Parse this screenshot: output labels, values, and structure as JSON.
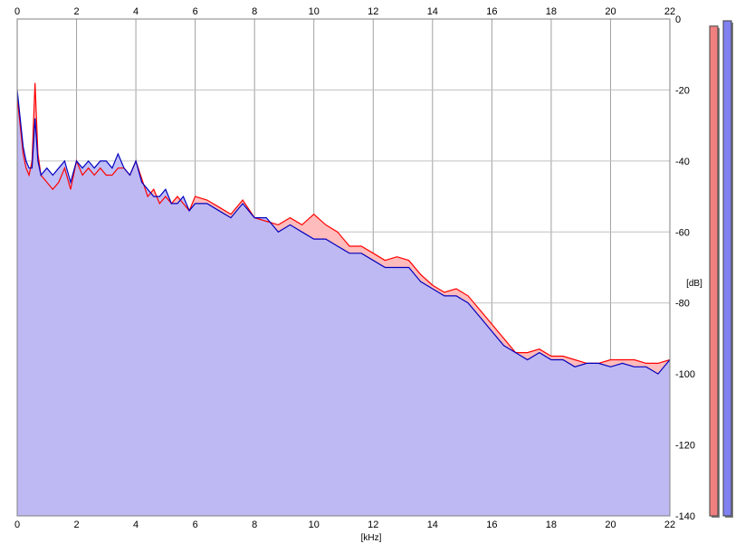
{
  "chart_data": {
    "type": "area",
    "xlabel": "[kHz]",
    "ylabel": "[dB]",
    "xlim": [
      0,
      22
    ],
    "ylim": [
      -140,
      0
    ],
    "x_ticks": [
      0,
      2,
      4,
      6,
      8,
      10,
      12,
      14,
      16,
      18,
      20,
      22
    ],
    "y_ticks": [
      0,
      -20,
      -40,
      -60,
      -80,
      -100,
      -120,
      -140
    ],
    "x_tick_labels": [
      "0",
      "2",
      "4",
      "6",
      "8",
      "10",
      "12",
      "14",
      "16",
      "18",
      "20",
      "22"
    ],
    "y_tick_labels": [
      "0",
      "-20",
      "-40",
      "-60",
      "-80",
      "-100",
      "-120",
      "-140"
    ],
    "grid": true,
    "x": [
      0.0,
      0.1,
      0.2,
      0.3,
      0.4,
      0.5,
      0.6,
      0.7,
      0.8,
      1.0,
      1.2,
      1.4,
      1.6,
      1.8,
      2.0,
      2.2,
      2.4,
      2.6,
      2.8,
      3.0,
      3.2,
      3.4,
      3.6,
      3.8,
      4.0,
      4.2,
      4.4,
      4.6,
      4.8,
      5.0,
      5.2,
      5.4,
      5.6,
      5.8,
      6.0,
      6.4,
      6.8,
      7.2,
      7.6,
      8.0,
      8.4,
      8.8,
      9.2,
      9.6,
      10.0,
      10.4,
      10.8,
      11.2,
      11.6,
      12.0,
      12.4,
      12.8,
      13.2,
      13.6,
      14.0,
      14.4,
      14.8,
      15.2,
      15.6,
      16.0,
      16.4,
      16.8,
      17.2,
      17.6,
      18.0,
      18.4,
      18.8,
      19.2,
      19.6,
      20.0,
      20.4,
      20.8,
      21.2,
      21.6,
      22.0
    ],
    "series": [
      {
        "color": "#ff0000",
        "values": [
          -22,
          -30,
          -38,
          -42,
          -44,
          -40,
          -18,
          -38,
          -44,
          -46,
          -48,
          -46,
          -42,
          -48,
          -40,
          -44,
          -42,
          -44,
          -42,
          -44,
          -44,
          -42,
          -42,
          -44,
          -40,
          -45,
          -50,
          -48,
          -52,
          -50,
          -52,
          -50,
          -52,
          -54,
          -50,
          -51,
          -53,
          -55,
          -51,
          -56,
          -57,
          -58,
          -56,
          -58,
          -55,
          -58,
          -60,
          -64,
          -64,
          -66,
          -68,
          -67,
          -68,
          -72,
          -75,
          -77,
          -76,
          -78,
          -82,
          -86,
          -90,
          -94,
          -94,
          -93,
          -95,
          -95,
          -96,
          -97,
          -97,
          -96,
          -96,
          -96,
          -97,
          -97,
          -96
        ]
      },
      {
        "color": "#0000c0",
        "values": [
          -20,
          -28,
          -36,
          -40,
          -42,
          -42,
          -28,
          -40,
          -44,
          -42,
          -44,
          -42,
          -40,
          -46,
          -40,
          -42,
          -40,
          -42,
          -40,
          -40,
          -42,
          -38,
          -42,
          -44,
          -40,
          -46,
          -48,
          -50,
          -50,
          -48,
          -52,
          -52,
          -50,
          -54,
          -52,
          -52,
          -54,
          -56,
          -52,
          -56,
          -56,
          -60,
          -58,
          -60,
          -62,
          -62,
          -64,
          -66,
          -66,
          -68,
          -70,
          -70,
          -70,
          -74,
          -76,
          -78,
          -78,
          -80,
          -84,
          -88,
          -92,
          -94,
          -96,
          -94,
          -96,
          -96,
          -98,
          -97,
          -97,
          -98,
          -97,
          -98,
          -98,
          -100,
          -96
        ]
      }
    ],
    "level_meters": [
      {
        "color": "#f08080",
        "value_db": -2
      },
      {
        "color": "#8080f0",
        "value_db": -0.5
      }
    ]
  }
}
